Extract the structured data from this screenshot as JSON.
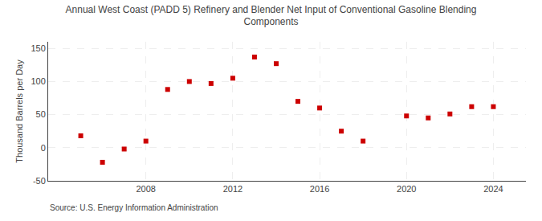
{
  "chart_data": {
    "type": "scatter",
    "title": "Annual West Coast (PADD 5) Refinery and Blender Net Input of Conventional Gasoline Blending\nComponents",
    "ylabel": "Thousand Barrels per Day",
    "annotations": [
      "Source: U.S. Energy Information Administration"
    ],
    "x": [
      2005,
      2006,
      2007,
      2008,
      2009,
      2010,
      2011,
      2012,
      2013,
      2014,
      2015,
      2016,
      2017,
      2018,
      2020,
      2021,
      2022,
      2023,
      2024
    ],
    "values": [
      18,
      -22,
      -2,
      10,
      88,
      100,
      97,
      105,
      137,
      127,
      70,
      60,
      25,
      10,
      48,
      45,
      51,
      62,
      62
    ],
    "color": "#cc0000",
    "marker": "square",
    "xlim": [
      2003.5,
      2025.5
    ],
    "xticks": [
      2008,
      2012,
      2016,
      2020,
      2024
    ],
    "ylim": [
      -50,
      160
    ],
    "yticks": [
      -50,
      0,
      50,
      100,
      150
    ],
    "grid": true
  }
}
